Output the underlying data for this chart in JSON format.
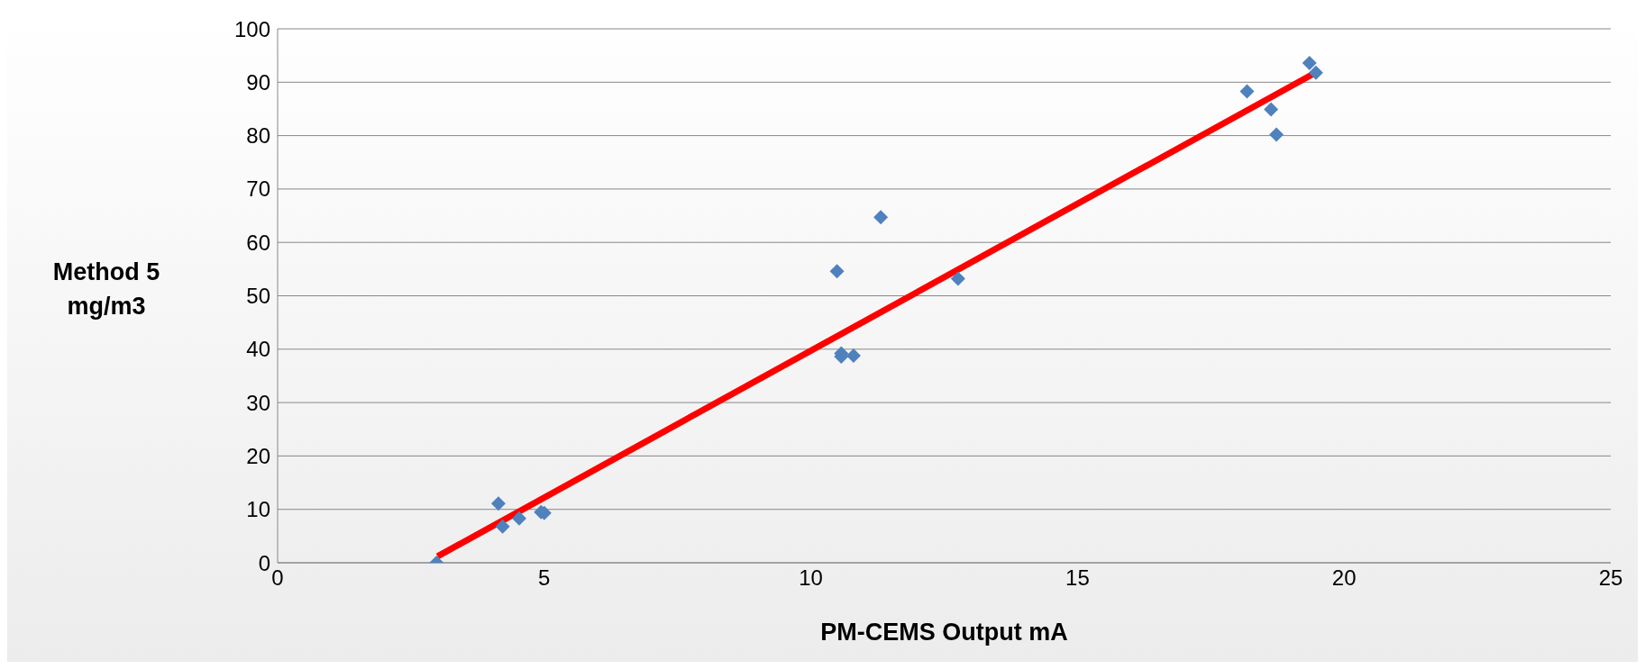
{
  "chart_data": {
    "type": "scatter",
    "xlabel": "PM-CEMS Output mA",
    "ylabel": "Method 5\nmg/m3",
    "series": [
      {
        "color": "#4f81bd",
        "marker": "diamond",
        "x": [
          2.98,
          4.14,
          4.22,
          4.53,
          4.94,
          5.0,
          10.49,
          10.57,
          10.57,
          10.8,
          11.31,
          12.76,
          18.18,
          18.63,
          18.73,
          19.35,
          19.47
        ],
        "values": [
          0,
          11.1,
          6.8,
          8.3,
          9.5,
          9.3,
          54.6,
          39.2,
          38.6,
          38.8,
          64.7,
          53.2,
          88.3,
          84.9,
          80.2,
          93.6,
          91.8
        ]
      },
      {
        "type": "line",
        "color": "#ff0000",
        "marker": "none",
        "line_style": "solid",
        "x": [
          3,
          19.5
        ],
        "values": [
          1.2,
          92
        ]
      }
    ],
    "xlim": [
      0,
      25
    ],
    "xticks": [
      0,
      5,
      10,
      15,
      20,
      25
    ],
    "ylim": [
      0,
      100
    ],
    "yticks": [
      0,
      10,
      20,
      30,
      40,
      50,
      60,
      70,
      80,
      90,
      100
    ],
    "grid": "y"
  }
}
